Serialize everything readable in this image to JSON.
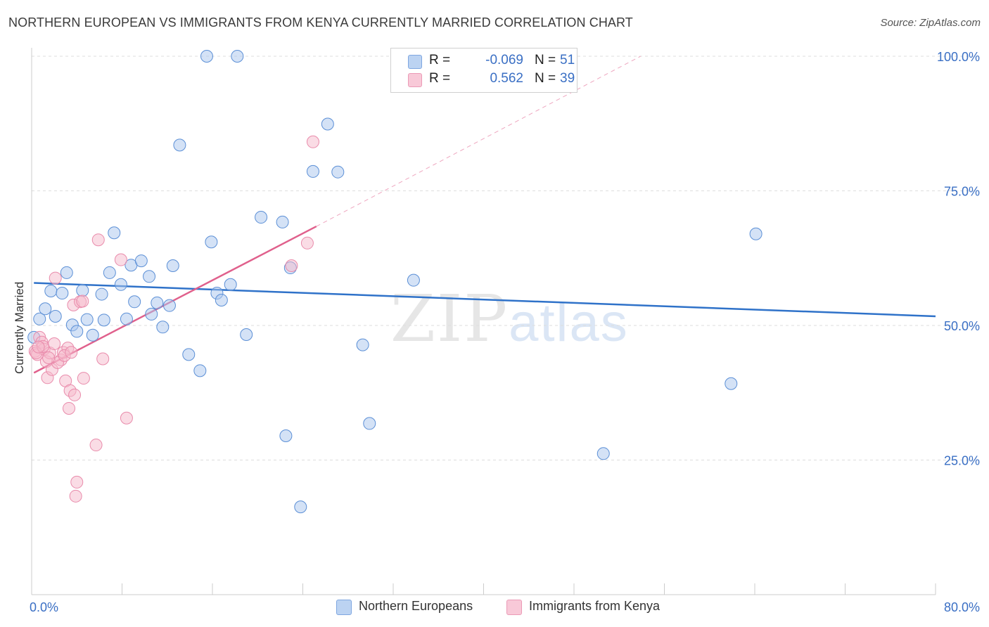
{
  "title": "NORTHERN EUROPEAN VS IMMIGRANTS FROM KENYA CURRENTLY MARRIED CORRELATION CHART",
  "source": "Source: ZipAtlas.com",
  "watermark": {
    "zip": "ZIP",
    "atlas": "atlas"
  },
  "legend_top": {
    "rows": [
      {
        "r_label": "R =",
        "r_value": "-0.069",
        "n_label": "N =",
        "n_value": "51"
      },
      {
        "r_label": "R =",
        "r_value": "0.562",
        "n_label": "N =",
        "n_value": "39"
      }
    ]
  },
  "legend_bottom": {
    "items": [
      {
        "label": "Northern Europeans"
      },
      {
        "label": "Immigrants from Kenya"
      }
    ]
  },
  "colors": {
    "blue_fill": "#a9c6ee",
    "blue_stroke": "#5b8fd6",
    "blue_line": "#2f72c9",
    "pink_fill": "#f6b9cc",
    "pink_stroke": "#e98bab",
    "pink_line": "#e0608c",
    "axis_text": "#3a6fc4",
    "grid": "#dddddd"
  },
  "chart_data": {
    "type": "scatter",
    "title": "NORTHERN EUROPEAN VS IMMIGRANTS FROM KENYA CURRENTLY MARRIED CORRELATION CHART",
    "xlabel": "",
    "ylabel": "Currently Married",
    "xlim": [
      0,
      80
    ],
    "ylim": [
      0,
      100
    ],
    "x_tick_labels": [
      {
        "value": 0,
        "label": "0.0%"
      },
      {
        "value": 80,
        "label": "80.0%"
      }
    ],
    "y_tick_labels": [
      {
        "value": 100,
        "label": "100.0%"
      },
      {
        "value": 75,
        "label": "75.0%"
      },
      {
        "value": 50,
        "label": "50.0%"
      },
      {
        "value": 25,
        "label": "25.0%"
      }
    ],
    "series": [
      {
        "name": "Northern Europeans",
        "color": "blue",
        "points": [
          [
            0.7,
            51.2
          ],
          [
            1.2,
            53.1
          ],
          [
            1.7,
            56.4
          ],
          [
            2.1,
            51.7
          ],
          [
            2.7,
            56.0
          ],
          [
            3.1,
            59.8
          ],
          [
            3.6,
            50.1
          ],
          [
            4.0,
            48.9
          ],
          [
            4.5,
            56.5
          ],
          [
            4.9,
            51.1
          ],
          [
            5.4,
            48.2
          ],
          [
            6.2,
            55.8
          ],
          [
            6.4,
            51.0
          ],
          [
            6.9,
            59.8
          ],
          [
            7.3,
            67.2
          ],
          [
            7.9,
            57.6
          ],
          [
            8.4,
            51.2
          ],
          [
            8.8,
            61.2
          ],
          [
            9.1,
            54.4
          ],
          [
            9.7,
            62.0
          ],
          [
            10.4,
            59.1
          ],
          [
            10.6,
            52.1
          ],
          [
            11.1,
            54.2
          ],
          [
            11.6,
            49.7
          ],
          [
            12.2,
            53.7
          ],
          [
            12.5,
            61.1
          ],
          [
            13.1,
            83.5
          ],
          [
            13.9,
            44.6
          ],
          [
            14.9,
            41.6
          ],
          [
            15.5,
            100.0
          ],
          [
            15.9,
            65.5
          ],
          [
            16.4,
            56.0
          ],
          [
            16.8,
            54.7
          ],
          [
            17.6,
            57.6
          ],
          [
            18.2,
            100.0
          ],
          [
            19.0,
            48.3
          ],
          [
            20.3,
            70.1
          ],
          [
            22.2,
            69.2
          ],
          [
            22.5,
            29.5
          ],
          [
            22.9,
            60.7
          ],
          [
            23.8,
            16.3
          ],
          [
            24.9,
            78.6
          ],
          [
            26.2,
            87.4
          ],
          [
            27.1,
            78.5
          ],
          [
            29.3,
            46.4
          ],
          [
            29.9,
            31.8
          ],
          [
            33.8,
            58.4
          ],
          [
            50.6,
            26.2
          ],
          [
            61.9,
            39.2
          ],
          [
            64.1,
            67.0
          ],
          [
            0.2,
            47.8
          ]
        ],
        "trend": {
          "x": [
            0.2,
            80
          ],
          "y": [
            57.9,
            51.7
          ]
        }
      },
      {
        "name": "Immigrants from Kenya",
        "color": "pink",
        "points": [
          [
            0.3,
            45.2
          ],
          [
            0.5,
            44.6
          ],
          [
            0.7,
            47.8
          ],
          [
            0.9,
            46.9
          ],
          [
            1.1,
            45.6
          ],
          [
            1.3,
            43.3
          ],
          [
            1.4,
            40.3
          ],
          [
            1.6,
            44.9
          ],
          [
            1.8,
            41.8
          ],
          [
            2.0,
            46.6
          ],
          [
            2.1,
            58.8
          ],
          [
            2.6,
            43.6
          ],
          [
            2.8,
            45.0
          ],
          [
            3.0,
            39.7
          ],
          [
            3.2,
            45.8
          ],
          [
            3.3,
            34.6
          ],
          [
            3.4,
            37.9
          ],
          [
            3.7,
            53.8
          ],
          [
            3.8,
            37.1
          ],
          [
            3.9,
            18.3
          ],
          [
            4.0,
            20.9
          ],
          [
            4.3,
            54.4
          ],
          [
            4.5,
            54.5
          ],
          [
            4.6,
            40.2
          ],
          [
            5.7,
            27.8
          ],
          [
            5.9,
            65.9
          ],
          [
            6.3,
            43.8
          ],
          [
            7.9,
            62.2
          ],
          [
            8.4,
            32.8
          ],
          [
            23.0,
            61.1
          ],
          [
            24.4,
            65.3
          ],
          [
            24.9,
            84.1
          ],
          [
            0.4,
            44.9
          ],
          [
            1.0,
            46.1
          ],
          [
            2.3,
            43.1
          ],
          [
            2.9,
            44.4
          ],
          [
            0.6,
            46.0
          ],
          [
            1.5,
            44.0
          ],
          [
            3.5,
            45.0
          ]
        ],
        "trend": {
          "x": [
            0.2,
            25.2
          ],
          "y": [
            41.2,
            68.4
          ]
        },
        "trend_extension": {
          "x": [
            25.2,
            53.9
          ],
          "y": [
            68.4,
            100.0
          ]
        }
      }
    ]
  }
}
